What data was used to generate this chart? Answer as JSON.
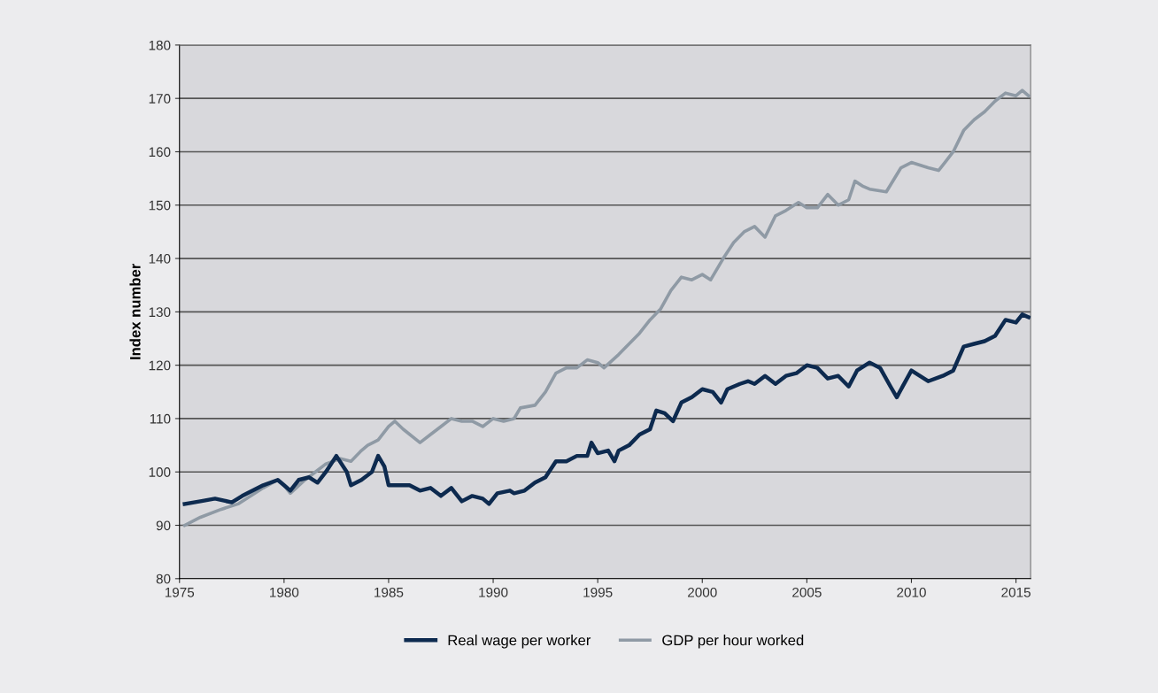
{
  "chart_data": {
    "type": "line",
    "ylabel": "Index number",
    "xlim": [
      1975,
      2015.7
    ],
    "xticks": [
      1975,
      1980,
      1985,
      1990,
      1995,
      2000,
      2005,
      2010,
      2015
    ],
    "ylim": [
      80,
      180
    ],
    "yticks": [
      80,
      90,
      100,
      110,
      120,
      130,
      140,
      150,
      160,
      170,
      180
    ],
    "grid": "y",
    "legend": "bottom",
    "marker": "none",
    "line_style": "solid",
    "series": [
      {
        "name": "Real wage per worker",
        "color": "#0d2a4f",
        "x": [
          1975.25,
          1976,
          1976.7,
          1977.5,
          1978,
          1979,
          1979.7,
          1980,
          1980.3,
          1980.7,
          1981.2,
          1981.6,
          1982,
          1982.5,
          1983,
          1983.2,
          1983.7,
          1984.2,
          1984.5,
          1984.8,
          1985,
          1986,
          1986.5,
          1987,
          1987.5,
          1988,
          1988.5,
          1989,
          1989.5,
          1989.8,
          1990.2,
          1990.8,
          1991,
          1991.5,
          1992,
          1992.5,
          1993,
          1993.5,
          1994,
          1994.5,
          1994.7,
          1995,
          1995.5,
          1995.8,
          1996,
          1996.5,
          1997,
          1997.5,
          1997.8,
          1998.2,
          1998.6,
          1999,
          1999.5,
          2000,
          2000.5,
          2000.9,
          2001.2,
          2001.8,
          2002.2,
          2002.5,
          2003,
          2003.5,
          2004,
          2004.5,
          2005,
          2005.5,
          2006,
          2006.5,
          2007,
          2007.4,
          2008,
          2008.5,
          2009,
          2009.3,
          2010,
          2010.8,
          2011.5,
          2012,
          2012.5,
          2013,
          2013.5,
          2014,
          2014.5,
          2015,
          2015.3,
          2015.6
        ],
        "values": [
          94,
          94.5,
          95,
          94.3,
          95.5,
          97.5,
          98.5,
          97.5,
          96.5,
          98.5,
          99,
          98,
          100,
          103,
          100,
          97.5,
          98.5,
          100,
          103,
          101,
          97.5,
          97.5,
          96.5,
          97,
          95.5,
          97,
          94.5,
          95.5,
          95,
          94,
          96,
          96.5,
          96,
          96.5,
          98,
          99,
          102,
          102,
          103,
          103,
          105.5,
          103.5,
          104,
          102,
          104,
          105,
          107,
          108,
          111.5,
          111,
          109.5,
          113,
          114,
          115.5,
          115,
          113,
          115.5,
          116.5,
          117,
          116.5,
          118,
          116.5,
          118,
          118.5,
          120,
          119.5,
          117.5,
          118,
          116,
          119,
          120.5,
          119.5,
          116,
          114,
          119,
          117,
          118,
          119,
          123.5,
          124,
          124.5,
          125.5,
          128.5,
          128,
          129.5,
          129
        ]
      },
      {
        "name": "GDP per hour worked",
        "color": "#8f9aa5",
        "x": [
          1975.25,
          1976,
          1977,
          1977.8,
          1979,
          1979.7,
          1980,
          1980.3,
          1981,
          1981.5,
          1982,
          1982.7,
          1983.2,
          1983.7,
          1984,
          1984.5,
          1985,
          1985.3,
          1985.7,
          1986.5,
          1987,
          1987.5,
          1988,
          1988.5,
          1989,
          1989.5,
          1990,
          1990.5,
          1991,
          1991.3,
          1992,
          1992.5,
          1993,
          1993.5,
          1994,
          1994.5,
          1995,
          1995.3,
          1996,
          1996.5,
          1997,
          1997.5,
          1998,
          1998.5,
          1999,
          1999.5,
          2000,
          2000.4,
          2001,
          2001.5,
          2002,
          2002.5,
          2003,
          2003.5,
          2004,
          2004.6,
          2005,
          2005.5,
          2006,
          2006.5,
          2007,
          2007.3,
          2007.7,
          2008,
          2008.8,
          2009.5,
          2010,
          2010.8,
          2011.3,
          2011.6,
          2012,
          2012.5,
          2013,
          2013.5,
          2014,
          2014.5,
          2015,
          2015.3,
          2015.6
        ],
        "values": [
          90,
          91.5,
          93,
          94,
          97,
          98.5,
          97.5,
          96,
          98.5,
          100,
          101.5,
          102.5,
          102,
          104,
          105,
          106,
          108.5,
          109.5,
          108,
          105.5,
          107,
          108.5,
          110,
          109.5,
          109.5,
          108.5,
          110,
          109.5,
          110,
          112,
          112.5,
          115,
          118.5,
          119.5,
          119.5,
          121,
          120.5,
          119.5,
          122,
          124,
          126,
          128.5,
          130.5,
          134,
          136.5,
          136,
          137,
          136,
          140,
          143,
          145,
          146,
          144,
          148,
          149,
          150.5,
          149.5,
          149.5,
          152,
          150,
          151,
          154.5,
          153.5,
          153,
          152.5,
          157,
          158,
          157,
          156.5,
          158,
          160,
          164,
          166,
          167.5,
          169.5,
          171,
          170.5,
          171.5,
          170.5
        ]
      }
    ]
  }
}
